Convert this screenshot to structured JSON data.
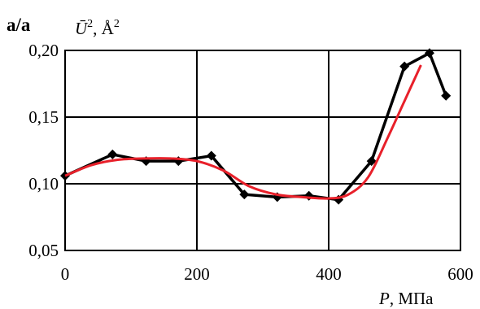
{
  "chart_data": {
    "type": "line",
    "panel_label": "a/a",
    "ylabel": {
      "symbol": "Ū",
      "sup": "2",
      "unit": ", Å",
      "unit_sup": "2"
    },
    "xlabel": {
      "symbol": "P",
      "unit": ", МПа"
    },
    "xlim": [
      0,
      600
    ],
    "ylim": [
      0.05,
      0.2
    ],
    "x_ticks": [
      0,
      200,
      400,
      600
    ],
    "x_tick_labels": [
      "0",
      "200",
      "400",
      "600"
    ],
    "y_ticks": [
      0.05,
      0.1,
      0.15,
      0.2
    ],
    "y_tick_labels": [
      "0,05",
      "0,10",
      "0,15",
      "0,20"
    ],
    "grid": true,
    "series": [
      {
        "style": "line-markers",
        "color": "#000000",
        "marker": "diamond",
        "x": [
          0,
          72,
          123,
          172,
          222,
          272,
          322,
          370,
          415,
          465,
          515,
          553,
          578
        ],
        "y": [
          0.106,
          0.122,
          0.117,
          0.117,
          0.121,
          0.092,
          0.09,
          0.091,
          0.088,
          0.117,
          0.188,
          0.198,
          0.166
        ]
      },
      {
        "style": "smooth-line",
        "color": "#e8202a",
        "x": [
          0,
          40,
          80,
          120,
          160,
          200,
          240,
          280,
          320,
          360,
          400,
          430,
          460,
          490,
          515,
          540
        ],
        "y": [
          0.106,
          0.114,
          0.118,
          0.119,
          0.119,
          0.117,
          0.11,
          0.098,
          0.092,
          0.09,
          0.089,
          0.092,
          0.105,
          0.135,
          0.162,
          0.189
        ]
      }
    ]
  }
}
